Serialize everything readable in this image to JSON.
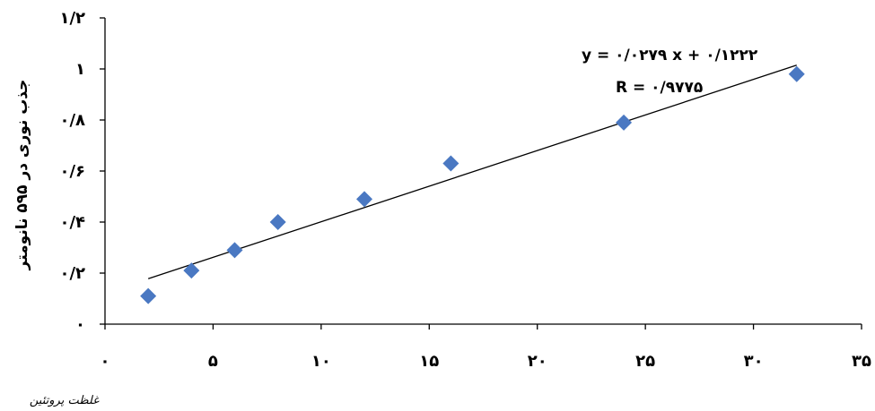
{
  "chart_data": {
    "type": "scatter",
    "x": [
      2,
      4,
      6,
      8,
      12,
      16,
      24,
      32
    ],
    "y": [
      0.11,
      0.21,
      0.29,
      0.4,
      0.49,
      0.63,
      0.79,
      0.98
    ],
    "trendline": {
      "x_start": 2,
      "x_end": 32,
      "slope": 0.0279,
      "intercept": 0.1222
    },
    "equation_line1": "y = ۰/۰۲۷۹ x + ۰/۱۲۲۲",
    "equation_line2": "R = ۰/۹۷۷۵",
    "ylabel": "جذب نوری در ۵۹۵ نانومتر",
    "xlabel": "",
    "xlim": [
      0,
      35
    ],
    "ylim": [
      0,
      1.2
    ],
    "x_ticks": [
      0,
      5,
      10,
      15,
      20,
      25,
      30,
      35
    ],
    "y_ticks": [
      0,
      0.2,
      0.4,
      0.6,
      0.8,
      1,
      1.2
    ],
    "x_tick_labels": [
      "۰",
      "۵",
      "۱۰",
      "۱۵",
      "۲۰",
      "۲۵",
      "۳۰",
      "۳۵"
    ],
    "y_tick_labels": [
      "۰",
      "۰/۲",
      "۰/۴",
      "۰/۶",
      "۰/۸",
      "۱",
      "۱/۲"
    ],
    "grid": false,
    "legend": "none",
    "marker_shape": "diamond",
    "colors": {
      "marker": "#4a78c2",
      "trendline": "#000000",
      "axis": "#000000"
    }
  },
  "caption": "غلظت پروتئین"
}
